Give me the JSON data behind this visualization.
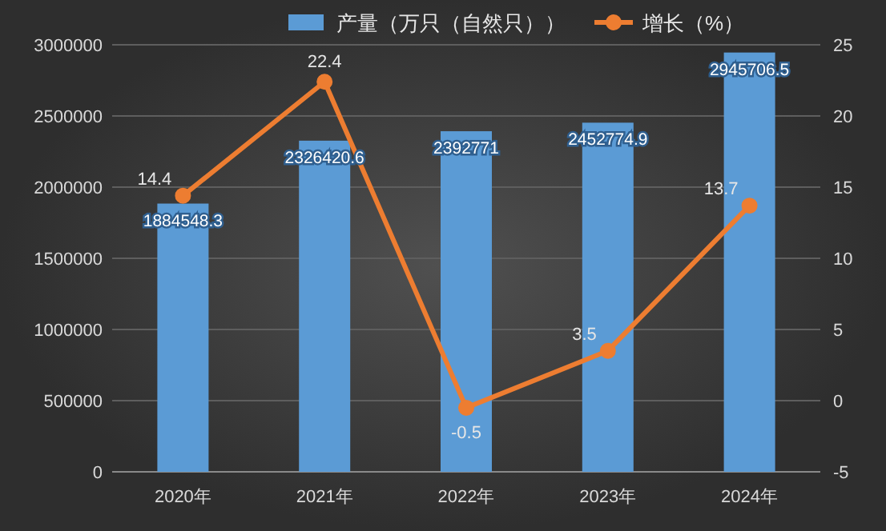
{
  "chart_data": {
    "type": "bar",
    "categories": [
      "2020年",
      "2021年",
      "2022年",
      "2023年",
      "2024年"
    ],
    "series": [
      {
        "name": "产量（万只（自然只））",
        "color": "#5b9bd5",
        "values": [
          1884548.3,
          2326420.6,
          2392771,
          2452774.9,
          2945706.5
        ]
      },
      {
        "name": "增长（%）",
        "type": "line",
        "axis": "y2",
        "color": "#ed7d31",
        "values": [
          14.4,
          22.4,
          -0.5,
          3.5,
          13.7
        ]
      }
    ],
    "ylim": [
      0,
      3000000
    ],
    "yticks": [
      0,
      500000,
      1000000,
      1500000,
      2000000,
      2500000,
      3000000
    ],
    "y2lim": [
      -5,
      25
    ],
    "y2ticks": [
      -5,
      0,
      5,
      10,
      15,
      20,
      25
    ],
    "grid": "y",
    "legend": "top",
    "marker": "circle",
    "data_labels": true
  }
}
